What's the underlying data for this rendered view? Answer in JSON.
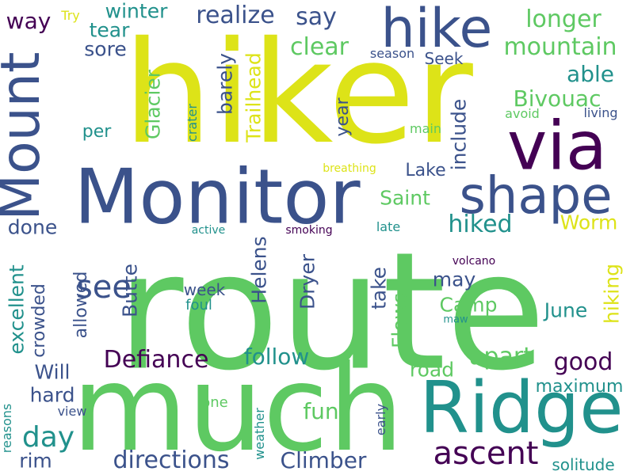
{
  "palette": {
    "yellow": "#dde318",
    "green": "#5ec962",
    "teal": "#21918c",
    "blue": "#3b528b",
    "purple": "#440154",
    "lime": "#a0da39"
  },
  "words": [
    {
      "text": "route",
      "color": "green",
      "vertical": false
    },
    {
      "text": "hiker",
      "color": "yellow",
      "vertical": false
    },
    {
      "text": "much",
      "color": "green",
      "vertical": false
    },
    {
      "text": "Monitor",
      "color": "blue",
      "vertical": false
    },
    {
      "text": "Ridge",
      "color": "teal",
      "vertical": false
    },
    {
      "text": "via",
      "color": "purple",
      "vertical": false
    },
    {
      "text": "shape",
      "color": "blue",
      "vertical": false
    },
    {
      "text": "hike",
      "color": "blue",
      "vertical": false
    },
    {
      "text": "Mount",
      "color": "blue",
      "vertical": true
    },
    {
      "text": "ascent",
      "color": "purple",
      "vertical": false
    },
    {
      "text": "see",
      "color": "blue",
      "vertical": false
    },
    {
      "text": "Defiance",
      "color": "purple",
      "vertical": false
    },
    {
      "text": "day",
      "color": "teal",
      "vertical": false
    },
    {
      "text": "follow",
      "color": "teal",
      "vertical": false
    },
    {
      "text": "realize",
      "color": "blue",
      "vertical": false
    },
    {
      "text": "longer",
      "color": "green",
      "vertical": false
    },
    {
      "text": "mountain",
      "color": "green",
      "vertical": false
    },
    {
      "text": "hiked",
      "color": "teal",
      "vertical": false
    },
    {
      "text": "Bivouac",
      "color": "green",
      "vertical": false
    },
    {
      "text": "apart",
      "color": "green",
      "vertical": false
    },
    {
      "text": "good",
      "color": "purple",
      "vertical": false
    },
    {
      "text": "fun",
      "color": "green",
      "vertical": false
    },
    {
      "text": "directions",
      "color": "blue",
      "vertical": false
    },
    {
      "text": "Climber",
      "color": "blue",
      "vertical": false
    },
    {
      "text": "say",
      "color": "blue",
      "vertical": false
    },
    {
      "text": "clear",
      "color": "green",
      "vertical": false
    },
    {
      "text": "able",
      "color": "teal",
      "vertical": false
    },
    {
      "text": "winter",
      "color": "teal",
      "vertical": false
    },
    {
      "text": "tear",
      "color": "teal",
      "vertical": false
    },
    {
      "text": "sore",
      "color": "blue",
      "vertical": false
    },
    {
      "text": "way",
      "color": "purple",
      "vertical": false
    },
    {
      "text": "Lake",
      "color": "blue",
      "vertical": false
    },
    {
      "text": "Saint",
      "color": "green",
      "vertical": false
    },
    {
      "text": "Worm",
      "color": "yellow",
      "vertical": false
    },
    {
      "text": "done",
      "color": "blue",
      "vertical": false
    },
    {
      "text": "may",
      "color": "blue",
      "vertical": false
    },
    {
      "text": "Camp",
      "color": "green",
      "vertical": false
    },
    {
      "text": "June",
      "color": "teal",
      "vertical": false
    },
    {
      "text": "road",
      "color": "green",
      "vertical": false
    },
    {
      "text": "maximum",
      "color": "teal",
      "vertical": false
    },
    {
      "text": "Will",
      "color": "blue",
      "vertical": false
    },
    {
      "text": "hard",
      "color": "blue",
      "vertical": false
    },
    {
      "text": "rim",
      "color": "blue",
      "vertical": false
    },
    {
      "text": "Seek",
      "color": "blue",
      "vertical": false
    },
    {
      "text": "per",
      "color": "teal",
      "vertical": false
    },
    {
      "text": "Try",
      "color": "yellow",
      "vertical": false
    },
    {
      "text": "season",
      "color": "blue",
      "vertical": false
    },
    {
      "text": "main",
      "color": "green",
      "vertical": false
    },
    {
      "text": "avoid",
      "color": "green",
      "vertical": false
    },
    {
      "text": "living",
      "color": "blue",
      "vertical": false
    },
    {
      "text": "breathing",
      "color": "yellow",
      "vertical": false
    },
    {
      "text": "active",
      "color": "teal",
      "vertical": false
    },
    {
      "text": "smoking",
      "color": "purple",
      "vertical": false
    },
    {
      "text": "late",
      "color": "teal",
      "vertical": false
    },
    {
      "text": "volcano",
      "color": "purple",
      "vertical": false
    },
    {
      "text": "week",
      "color": "blue",
      "vertical": false
    },
    {
      "text": "foul",
      "color": "teal",
      "vertical": false
    },
    {
      "text": "maw",
      "color": "teal",
      "vertical": false
    },
    {
      "text": "view",
      "color": "blue",
      "vertical": false
    },
    {
      "text": "one",
      "color": "green",
      "vertical": false
    },
    {
      "text": "solitude",
      "color": "teal",
      "vertical": false
    },
    {
      "text": "Glacier",
      "color": "green",
      "vertical": true
    },
    {
      "text": "Trailhead",
      "color": "yellow",
      "vertical": true
    },
    {
      "text": "barely",
      "color": "blue",
      "vertical": true
    },
    {
      "text": "crater",
      "color": "teal",
      "vertical": true
    },
    {
      "text": "year",
      "color": "blue",
      "vertical": true
    },
    {
      "text": "include",
      "color": "blue",
      "vertical": true
    },
    {
      "text": "Helens",
      "color": "blue",
      "vertical": true
    },
    {
      "text": "Butte",
      "color": "blue",
      "vertical": true
    },
    {
      "text": "Dryer",
      "color": "blue",
      "vertical": true
    },
    {
      "text": "take",
      "color": "blue",
      "vertical": true
    },
    {
      "text": "Flows",
      "color": "green",
      "vertical": true
    },
    {
      "text": "hiking",
      "color": "yellow",
      "vertical": true
    },
    {
      "text": "excellent",
      "color": "teal",
      "vertical": true
    },
    {
      "text": "crowded",
      "color": "blue",
      "vertical": true
    },
    {
      "text": "allowed",
      "color": "blue",
      "vertical": true
    },
    {
      "text": "reasons",
      "color": "teal",
      "vertical": true
    },
    {
      "text": "weather",
      "color": "teal",
      "vertical": true
    },
    {
      "text": "early",
      "color": "blue",
      "vertical": true
    }
  ]
}
